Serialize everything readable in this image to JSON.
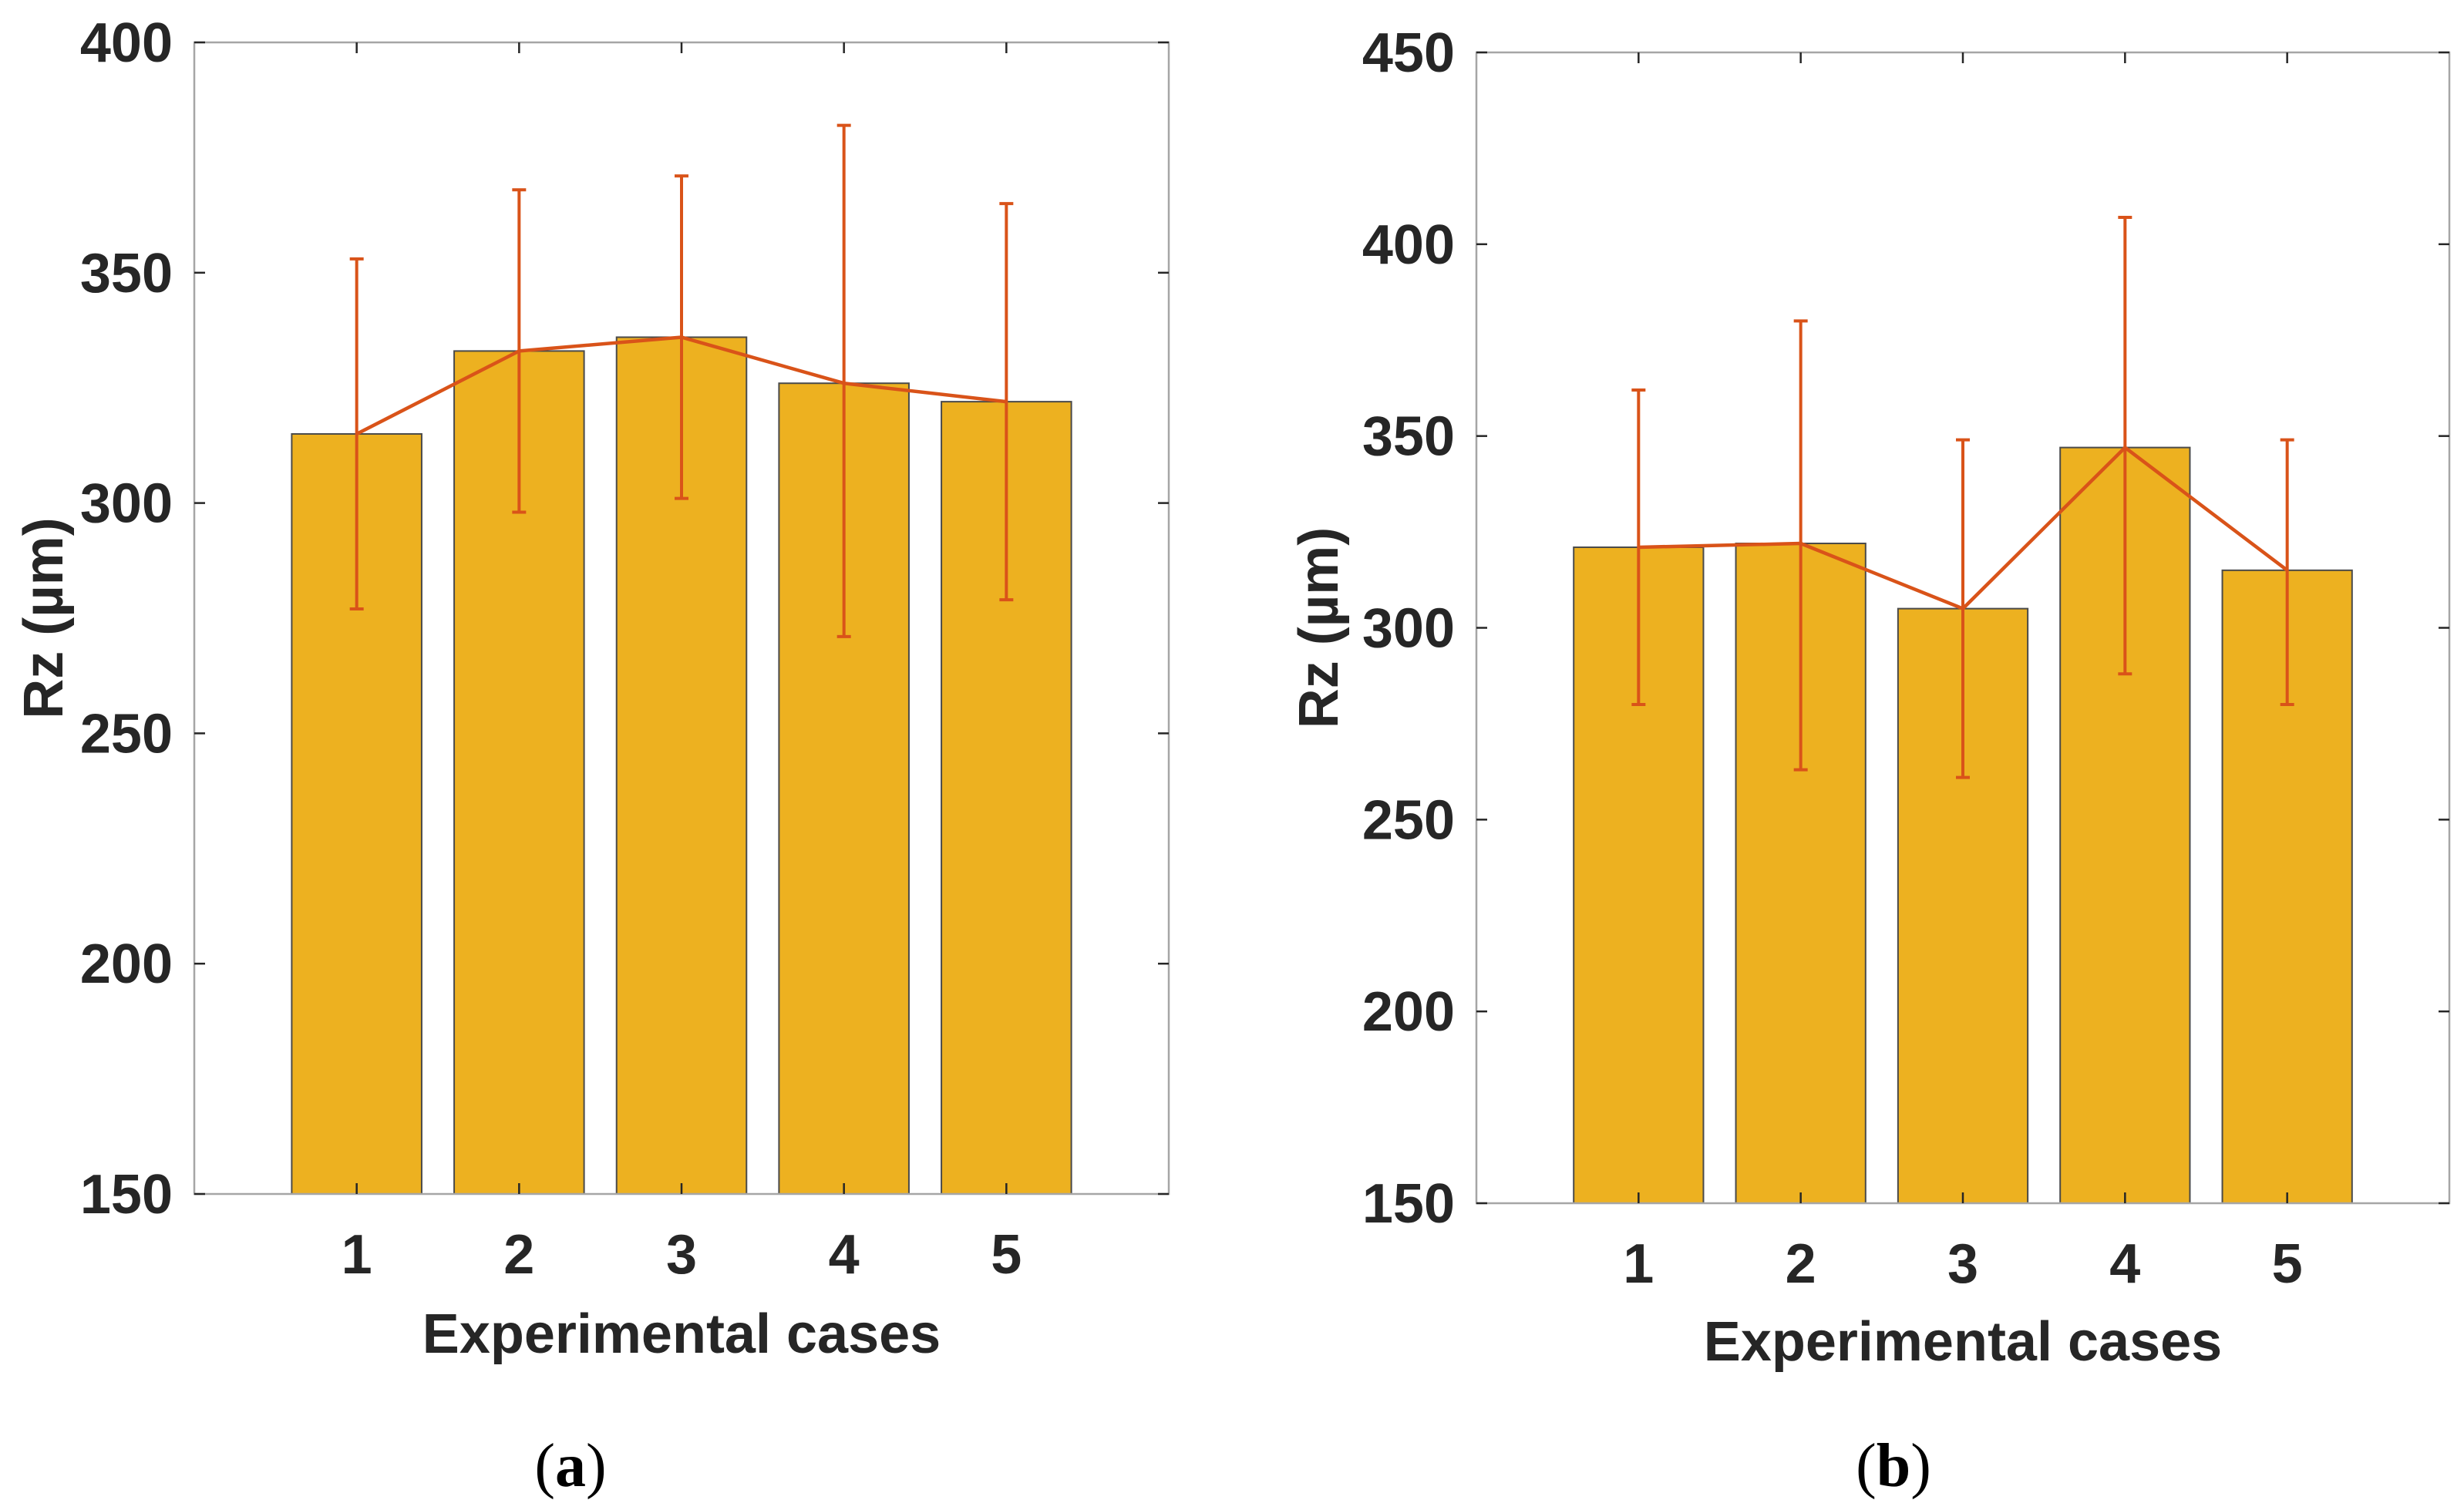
{
  "colors": {
    "bar_fill": "#EDB120",
    "bar_edge": "#4a4a4a",
    "line": "#D95319",
    "axis": "#262626",
    "box": "#a6a6a6"
  },
  "chart_data": [
    {
      "type": "bar",
      "panel": "a",
      "panel_open": "(",
      "panel_close": ")",
      "categories": [
        "1",
        "2",
        "3",
        "4",
        "5"
      ],
      "values": [
        315,
        333,
        336,
        326,
        322
      ],
      "error_low": [
        277,
        298,
        301,
        271,
        279
      ],
      "error_high": [
        353,
        368,
        371,
        382,
        365
      ],
      "line_overlay": true,
      "xlabel": "Experimental cases",
      "ylabel": "Rz (µm)",
      "ylim": [
        150,
        400
      ],
      "yticks": [
        "150",
        "200",
        "250",
        "300",
        "350",
        "400"
      ],
      "xlim": [
        0,
        6
      ]
    },
    {
      "type": "bar",
      "panel": "b",
      "panel_open": "(",
      "panel_close": ")",
      "categories": [
        "1",
        "2",
        "3",
        "4",
        "5"
      ],
      "values": [
        321,
        322,
        305,
        347,
        315
      ],
      "error_low": [
        280,
        263,
        261,
        288,
        280
      ],
      "error_high": [
        362,
        380,
        349,
        407,
        349
      ],
      "line_overlay": true,
      "xlabel": "Experimental cases",
      "ylabel": "Rz (µm)",
      "ylim": [
        150,
        450
      ],
      "yticks": [
        "150",
        "200",
        "250",
        "300",
        "350",
        "400",
        "450"
      ],
      "xlim": [
        0,
        6
      ]
    }
  ]
}
